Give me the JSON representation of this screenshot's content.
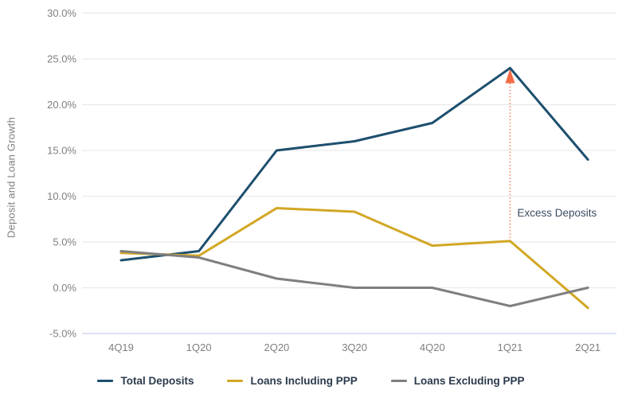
{
  "chart_data": {
    "type": "line",
    "title": "",
    "xlabel": "",
    "ylabel": "Deposit and Loan Growth",
    "categories": [
      "4Q19",
      "1Q20",
      "2Q20",
      "3Q20",
      "4Q20",
      "1Q21",
      "2Q21"
    ],
    "series": [
      {
        "name": "Total Deposits",
        "color": "#1d4f6e",
        "values": [
          3.0,
          4.0,
          15.0,
          16.0,
          18.0,
          24.0,
          14.0
        ]
      },
      {
        "name": "Loans Including PPP",
        "color": "#d2a724",
        "values": [
          3.8,
          3.5,
          8.7,
          8.3,
          4.6,
          5.1,
          -2.2
        ]
      },
      {
        "name": "Loans Excluding PPP",
        "color": "#7f7f7f",
        "values": [
          4.0,
          3.3,
          1.0,
          0.0,
          0.0,
          -2.0,
          0.0
        ]
      }
    ],
    "ylim": [
      -5,
      30
    ],
    "ytick_step": 5,
    "ytick_suffix": "%",
    "grid": true,
    "legend_position": "bottom",
    "annotation": {
      "label": "Excess Deposits",
      "category": "1Q21",
      "from_value": 5.1,
      "to_value": 24.0
    }
  },
  "style": {
    "grid_color": "#e9e9e9",
    "axis_line_color": "#c7d0ec",
    "tick_label_color": "#7f7f7f",
    "annotation_arrow_color": "#f26b45",
    "annotation_line_color": "#f58f6d",
    "annotation_text_color": "#3d4c63",
    "legend_text_color": "#2b3a4c"
  }
}
